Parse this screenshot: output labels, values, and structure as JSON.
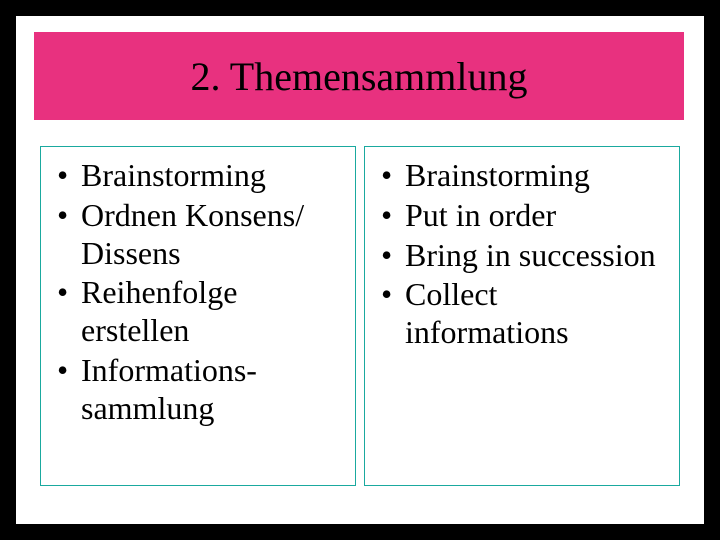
{
  "title": "2. Themensammlung",
  "title_bar_color": "#e8317f",
  "column_border_color": "#1aa99f",
  "left_items": [
    "Brainstorming",
    "Ordnen Konsens/ Dissens",
    "Reihenfolge erstellen",
    "Informations-sammlung"
  ],
  "right_items": [
    "Brainstorming",
    "Put in order",
    "Bring in succession",
    "Collect informations"
  ]
}
